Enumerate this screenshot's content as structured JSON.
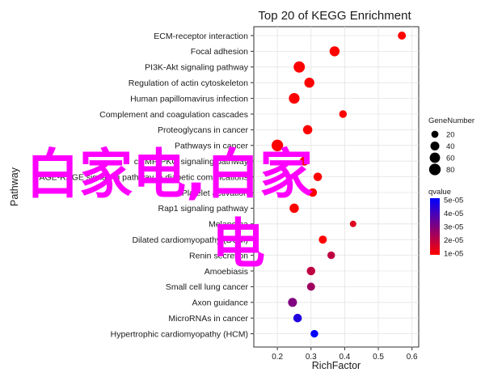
{
  "chart_data": {
    "type": "scatter",
    "title": "Top 20 of KEGG Enrichment",
    "xlabel": "RichFactor",
    "ylabel": "Pathway",
    "xlim": [
      0.13,
      0.62
    ],
    "xticks": [
      "0.2",
      "0.3",
      "0.4",
      "0.5",
      "0.6"
    ],
    "grid": true,
    "legend_placement": "right",
    "pathways": [
      {
        "name": "ECM-receptor interaction",
        "rich_factor": 0.57,
        "gene_number": 30,
        "qvalue": 1e-05
      },
      {
        "name": "Focal adhesion",
        "rich_factor": 0.37,
        "gene_number": 55,
        "qvalue": 1e-05
      },
      {
        "name": "PI3K-Akt signaling pathway",
        "rich_factor": 0.265,
        "gene_number": 75,
        "qvalue": 1e-05
      },
      {
        "name": "Regulation of actin cytoskeleton",
        "rich_factor": 0.295,
        "gene_number": 55,
        "qvalue": 1e-05
      },
      {
        "name": "Human papillomavirus infection",
        "rich_factor": 0.25,
        "gene_number": 65,
        "qvalue": 1e-05
      },
      {
        "name": "Complement and coagulation cascades",
        "rich_factor": 0.395,
        "gene_number": 25,
        "qvalue": 1e-05
      },
      {
        "name": "Proteoglycans in cancer",
        "rich_factor": 0.29,
        "gene_number": 45,
        "qvalue": 1e-05
      },
      {
        "name": "Pathways in cancer",
        "rich_factor": 0.2,
        "gene_number": 80,
        "qvalue": 1e-05
      },
      {
        "name": "cGMP-PKG signaling pathway",
        "rich_factor": 0.28,
        "gene_number": 40,
        "qvalue": 1e-05
      },
      {
        "name": "AGE-RAGE signaling pathway in diabetic complications",
        "rich_factor": 0.32,
        "gene_number": 35,
        "qvalue": 1e-05
      },
      {
        "name": "Platelet activation",
        "rich_factor": 0.305,
        "gene_number": 35,
        "qvalue": 1e-05
      },
      {
        "name": "Rap1 signaling pathway",
        "rich_factor": 0.25,
        "gene_number": 45,
        "qvalue": 1e-05
      },
      {
        "name": "Melanoma",
        "rich_factor": 0.425,
        "gene_number": 15,
        "qvalue": 1.5e-05
      },
      {
        "name": "Dilated cardiomyopathy (DCM)",
        "rich_factor": 0.335,
        "gene_number": 30,
        "qvalue": 1e-05
      },
      {
        "name": "Renin secretion",
        "rich_factor": 0.36,
        "gene_number": 25,
        "qvalue": 2e-05
      },
      {
        "name": "Amoebiasis",
        "rich_factor": 0.3,
        "gene_number": 35,
        "qvalue": 2e-05
      },
      {
        "name": "Small cell lung cancer",
        "rich_factor": 0.3,
        "gene_number": 30,
        "qvalue": 2.5e-05
      },
      {
        "name": "Axon guidance",
        "rich_factor": 0.245,
        "gene_number": 40,
        "qvalue": 3e-05
      },
      {
        "name": "MicroRNAs in cancer",
        "rich_factor": 0.26,
        "gene_number": 35,
        "qvalue": 4.5e-05
      },
      {
        "name": "Hypertrophic cardiomyopathy (HCM)",
        "rich_factor": 0.31,
        "gene_number": 25,
        "qvalue": 5e-05
      }
    ],
    "size_legend": {
      "title": "GeneNumber",
      "values": [
        20,
        40,
        60,
        80
      ],
      "labels": [
        "20",
        "40",
        "60",
        "80"
      ]
    },
    "color_legend": {
      "title": "qvalue",
      "labels": [
        "5e-05",
        "4e-05",
        "3e-05",
        "2e-05",
        "1e-05"
      ],
      "low_color": "#ff0000",
      "high_color": "#0000ff"
    }
  },
  "watermark": {
    "line1": "白家电,白家",
    "line2": "电",
    "color": "#ff00ff"
  }
}
